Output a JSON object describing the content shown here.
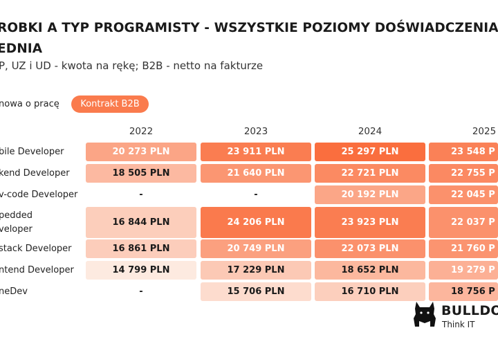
{
  "header": {
    "title_line1": "ROBKI A TYP PROGRAMISTY - WSZYSTKIE POZIOMY DOŚWIADCZENIA",
    "title_line2": "EDNIA",
    "subtitle": "P, UZ i UD - kwota na rękę; B2B - netto na fakturze"
  },
  "filter": {
    "label": "nowa o pracę",
    "selected": "Kontrakt B2B"
  },
  "colors": {
    "accent": "#fa7b4d",
    "text": "#1a1a1a"
  },
  "logo": {
    "name": "BULLDO",
    "tagline": "Think IT"
  },
  "chart_data": {
    "type": "table",
    "columns": [
      "2022",
      "2023",
      "2024",
      "2025"
    ],
    "rows": [
      {
        "label": "bile Developer",
        "values": [
          "20 273 PLN",
          "23 911 PLN",
          "25 297 PLN",
          "23 548 P"
        ],
        "amounts": [
          20273,
          23911,
          25297,
          23548
        ]
      },
      {
        "label": "kend Developer",
        "values": [
          "18 505 PLN",
          "21 640 PLN",
          "22 721 PLN",
          "22 755 P"
        ],
        "amounts": [
          18505,
          21640,
          22721,
          22755
        ]
      },
      {
        "label": "v-code Developer",
        "values": [
          "-",
          "-",
          "20 192 PLN",
          "22 045 P"
        ],
        "amounts": [
          null,
          null,
          20192,
          22045
        ]
      },
      {
        "label": "pedded\nveloper",
        "values": [
          "16 844 PLN",
          "24 206 PLN",
          "23 923 PLN",
          "22 037 P"
        ],
        "amounts": [
          16844,
          24206,
          23923,
          22037
        ]
      },
      {
        "label": "stack Developer",
        "values": [
          "16 861 PLN",
          "20 749 PLN",
          "22 073 PLN",
          "21 760 P"
        ],
        "amounts": [
          16861,
          20749,
          22073,
          21760
        ]
      },
      {
        "label": "ntend Developer",
        "values": [
          "14 799 PLN",
          "17 229 PLN",
          "18 652 PLN",
          "19 279 P"
        ],
        "amounts": [
          14799,
          17229,
          18652,
          19279
        ]
      },
      {
        "label": "neDev",
        "values": [
          "-",
          "15 706 PLN",
          "16 710 PLN",
          "18 756 P"
        ],
        "amounts": [
          null,
          15706,
          16710,
          18756
        ]
      }
    ]
  }
}
